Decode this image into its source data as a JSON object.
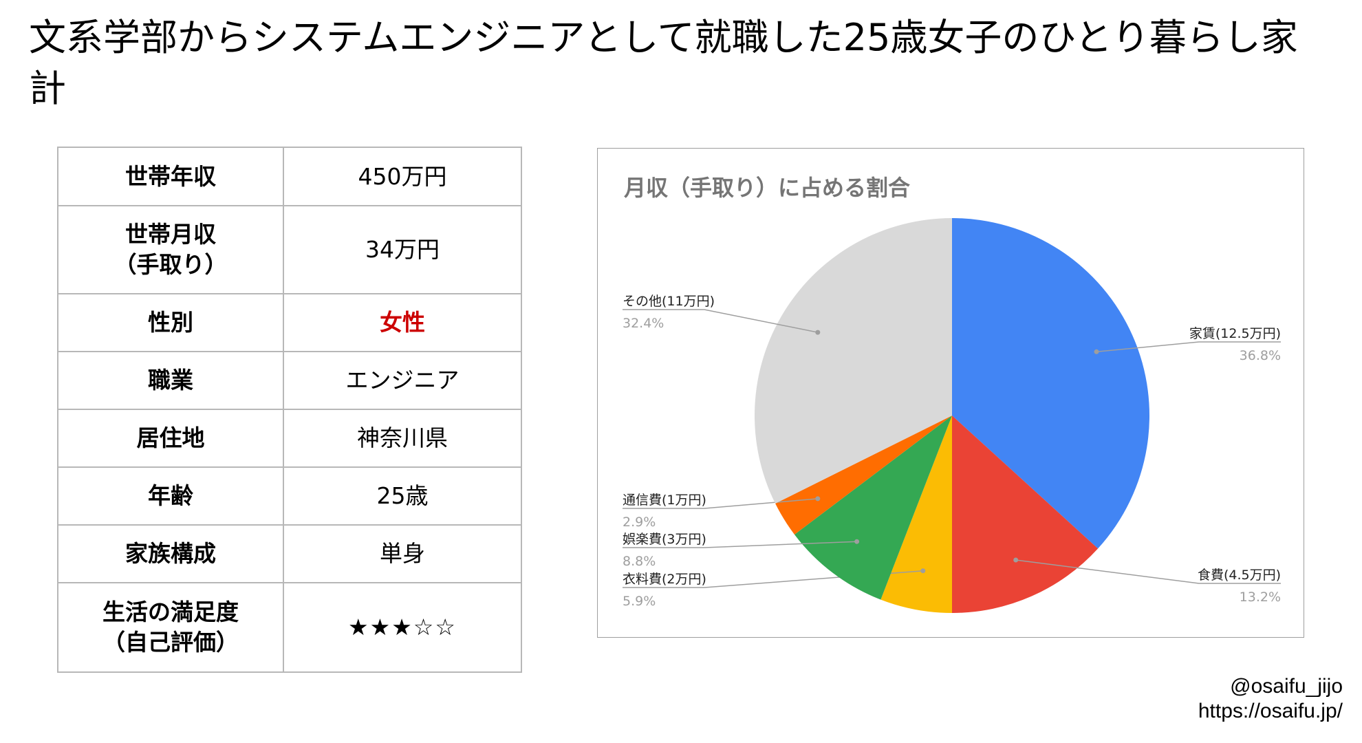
{
  "page": {
    "title": "文系学部からシステムエンジニアとして就職した25歳女子のひとり暮らし家計"
  },
  "profile": {
    "rows": [
      {
        "label": "世帯年収",
        "value": "450万円"
      },
      {
        "label": "世帯月収\n（手取り）",
        "value": "34万円"
      },
      {
        "label": "性別",
        "value": "女性"
      },
      {
        "label": "職業",
        "value": "エンジニア"
      },
      {
        "label": "居住地",
        "value": "神奈川県"
      },
      {
        "label": "年齢",
        "value": "25歳"
      },
      {
        "label": "家族構成",
        "value": "単身"
      },
      {
        "label": "生活の満足度\n（自己評価）",
        "value": "★★★☆☆"
      }
    ],
    "highlight_color": "#cc0000",
    "satisfaction_rating": 3,
    "satisfaction_max": 5
  },
  "chart_data": {
    "type": "pie",
    "title": "月収（手取り）に占める割合",
    "start_angle": "12 o'clock, clockwise",
    "slices": [
      {
        "label": "家賃(12.5万円)",
        "value": 12.5,
        "percent": "36.8%",
        "color": "#4285f4",
        "label_side": "right"
      },
      {
        "label": "食費(4.5万円)",
        "value": 4.5,
        "percent": "13.2%",
        "color": "#ea4335",
        "label_side": "right"
      },
      {
        "label": "衣料費(2万円)",
        "value": 2,
        "percent": "5.9%",
        "color": "#fbbc04",
        "label_side": "left"
      },
      {
        "label": "娯楽費(3万円)",
        "value": 3,
        "percent": "8.8%",
        "color": "#34a853",
        "label_side": "left"
      },
      {
        "label": "通信費(1万円)",
        "value": 1,
        "percent": "2.9%",
        "color": "#ff6d01",
        "label_side": "left"
      },
      {
        "label": "その他(11万円)",
        "value": 11,
        "percent": "32.4%",
        "color": "#d9d9d9",
        "label_side": "left"
      }
    ]
  },
  "credit": {
    "handle": "@osaifu_jijo",
    "url": "https://osaifu.jp/"
  }
}
